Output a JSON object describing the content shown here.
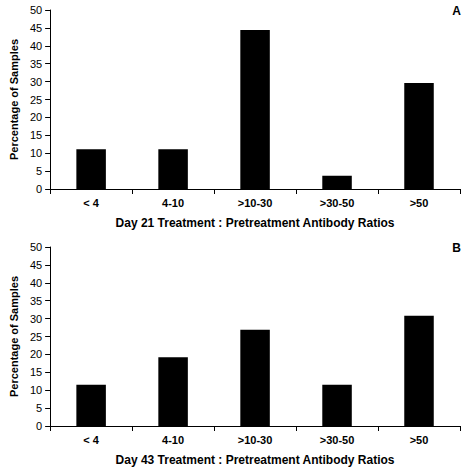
{
  "chart_data": [
    {
      "type": "bar",
      "title": "A",
      "categories": [
        "< 4",
        "4-10",
        ">10-30",
        ">30-50",
        ">50"
      ],
      "values": [
        11.1,
        11.1,
        44.4,
        3.7,
        29.6
      ],
      "color": "#000000",
      "x_label": "Day 21 Treatment : Pretreatment Antibody Ratios",
      "y_label": "Percentage of Samples",
      "ylim": [
        0,
        50
      ],
      "yticks": [
        0,
        5,
        10,
        15,
        20,
        25,
        30,
        35,
        40,
        45,
        50
      ],
      "grid": false
    },
    {
      "type": "bar",
      "title": "B",
      "categories": [
        "< 4",
        "4-10",
        ">10-30",
        ">30-50",
        ">50"
      ],
      "values": [
        11.5,
        19.2,
        26.9,
        11.5,
        30.8
      ],
      "color": "#000000",
      "x_label": "Day 43 Treatment : Pretreatment Antibody Ratios",
      "y_label": "Percentage of Samples",
      "ylim": [
        0,
        50
      ],
      "yticks": [
        0,
        5,
        10,
        15,
        20,
        25,
        30,
        35,
        40,
        45,
        50
      ],
      "grid": false
    }
  ]
}
